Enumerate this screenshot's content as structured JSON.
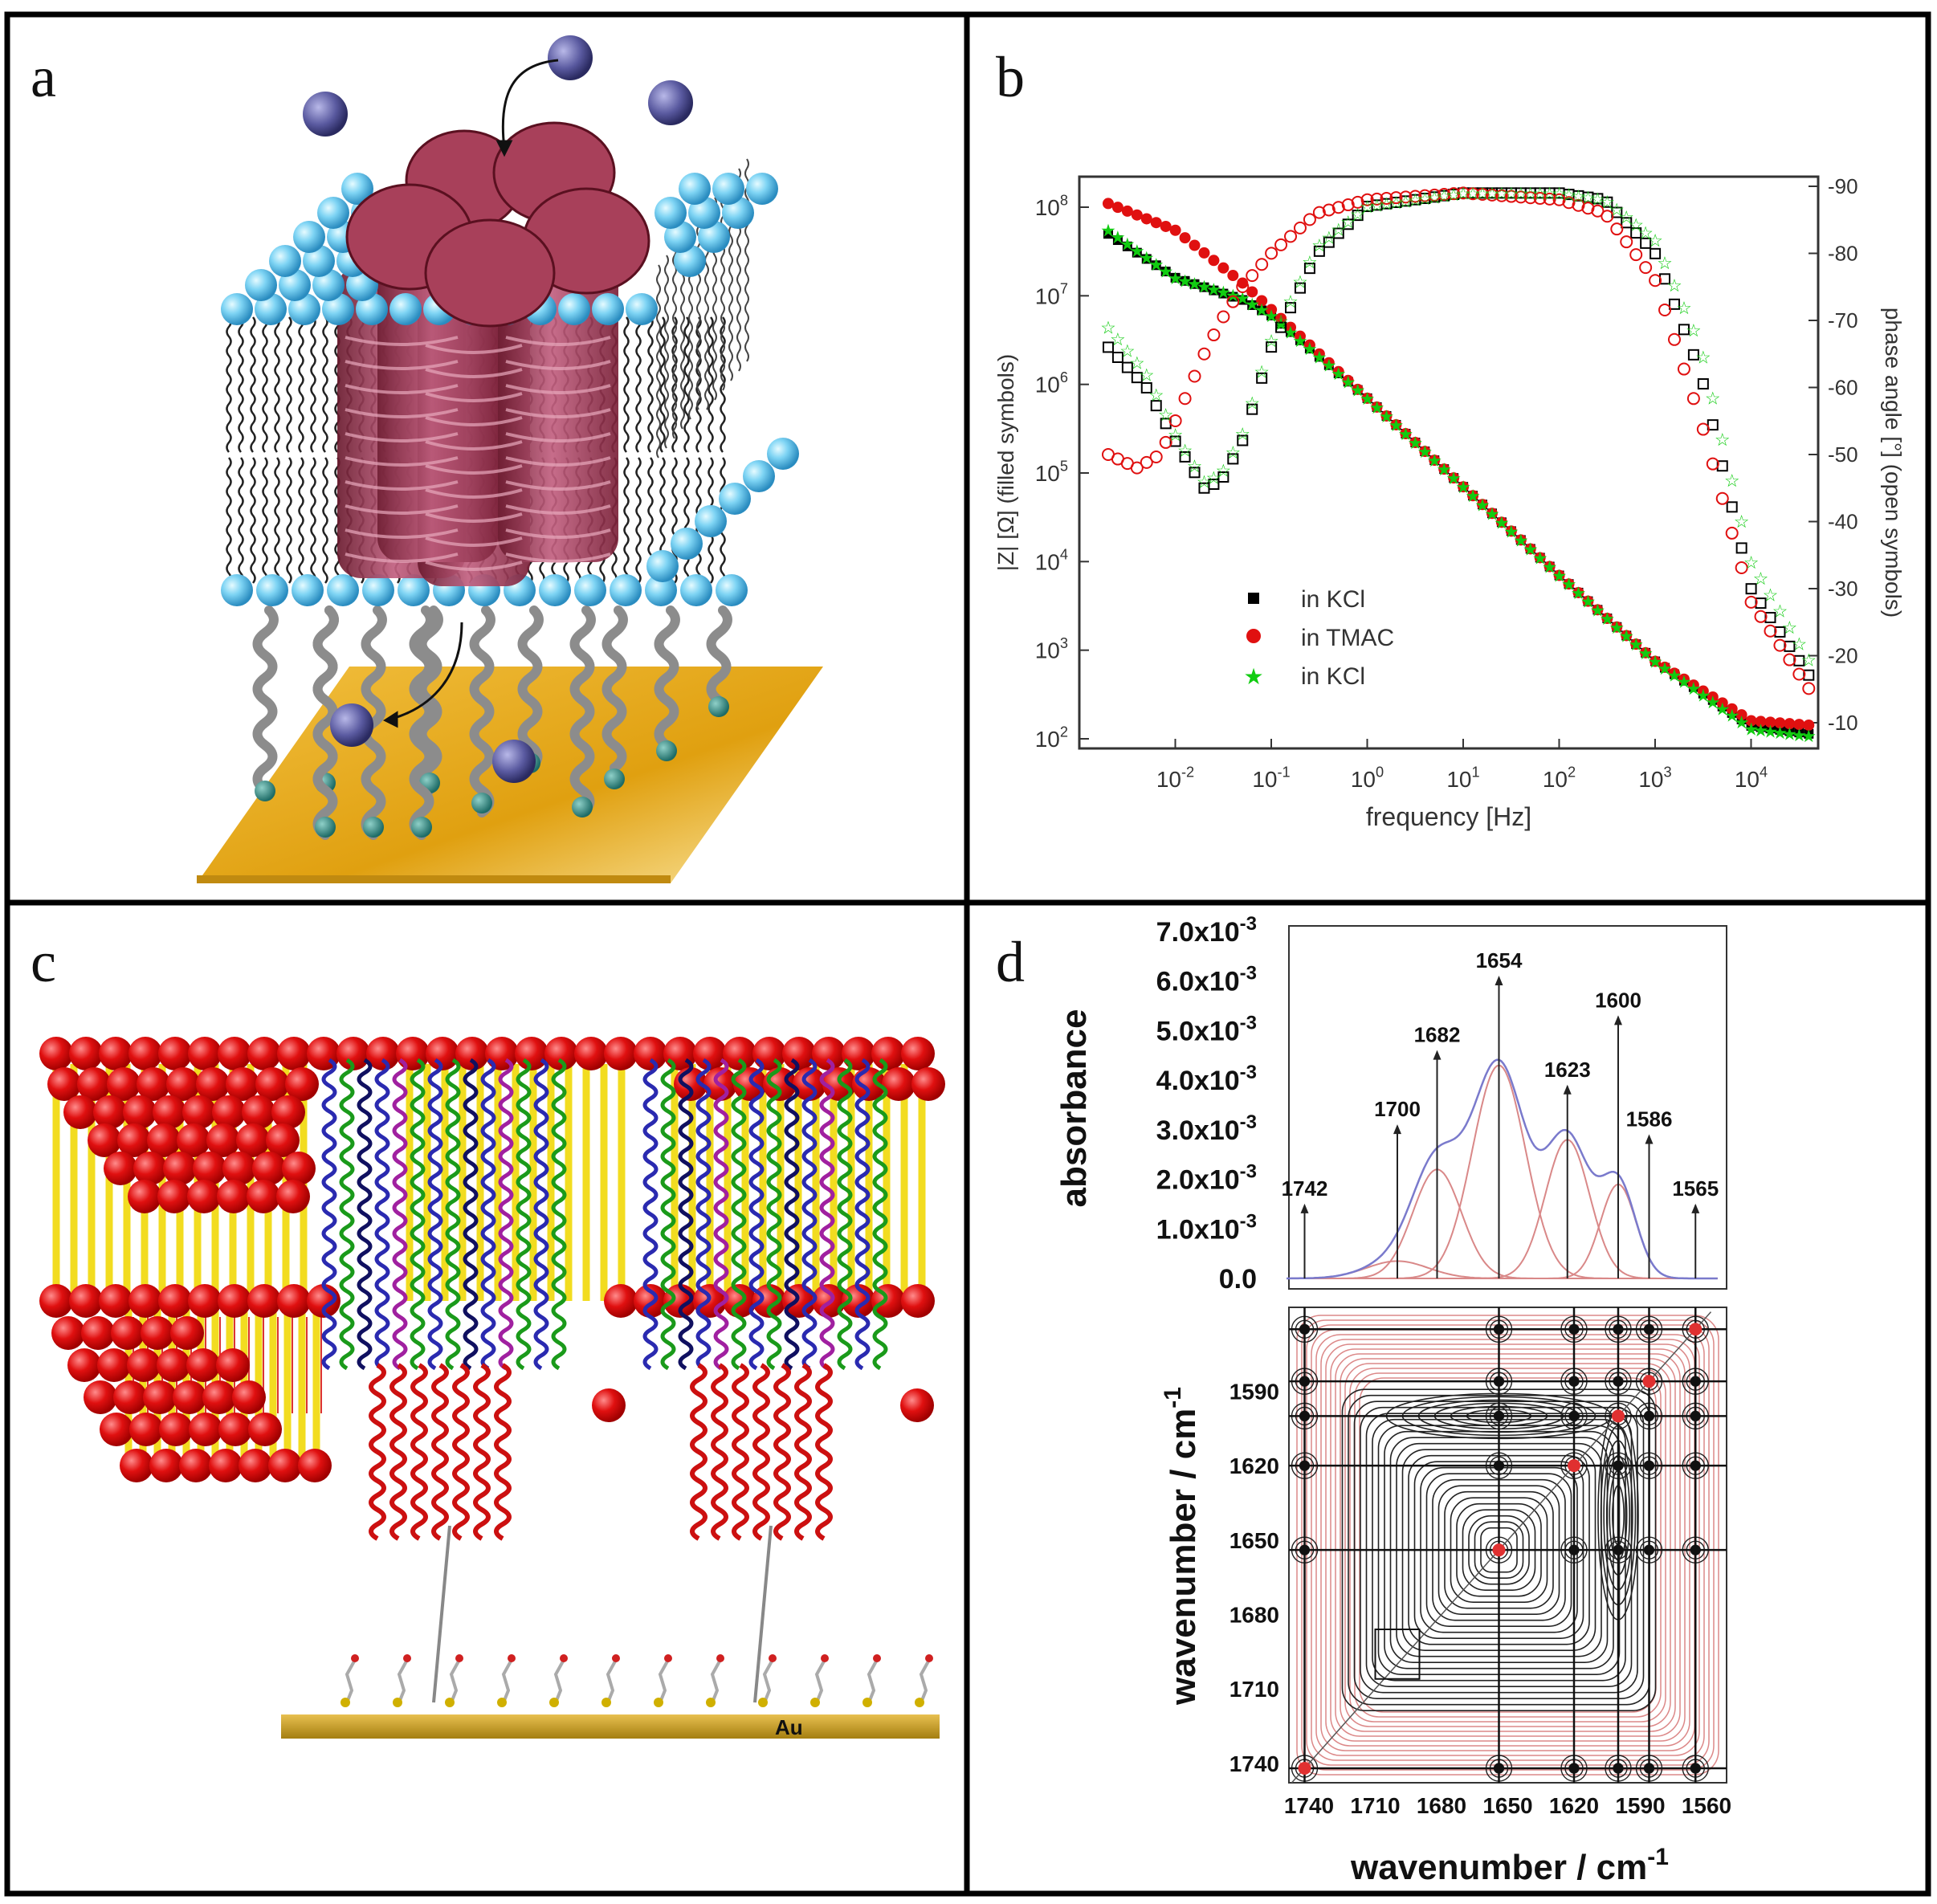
{
  "panels": {
    "a": {
      "label": "a"
    },
    "b": {
      "label": "b"
    },
    "c": {
      "label": "c",
      "substrate_label": "Au"
    },
    "d": {
      "label": "d"
    }
  },
  "chart_data": [
    {
      "panel": "b",
      "type": "scatter",
      "xlabel": "frequency [Hz]",
      "ylabel": "|Z| [Ω] (filled symbols)",
      "y2label": "phase angle [°] (open symbols)",
      "xscale": "log",
      "yscale": "log",
      "xlim": [
        0.001,
        50000
      ],
      "ylim": [
        100,
        100000000
      ],
      "y2lim": [
        -8,
        -92
      ],
      "x_ticks": [
        {
          "base": "10",
          "exp": "-2"
        },
        {
          "base": "10",
          "exp": "-1"
        },
        {
          "base": "10",
          "exp": "0"
        },
        {
          "base": "10",
          "exp": "1"
        },
        {
          "base": "10",
          "exp": "2"
        },
        {
          "base": "10",
          "exp": "3"
        },
        {
          "base": "10",
          "exp": "4"
        }
      ],
      "y_ticks": [
        {
          "base": "10",
          "exp": "2"
        },
        {
          "base": "10",
          "exp": "3"
        },
        {
          "base": "10",
          "exp": "4"
        },
        {
          "base": "10",
          "exp": "5"
        },
        {
          "base": "10",
          "exp": "6"
        },
        {
          "base": "10",
          "exp": "7"
        },
        {
          "base": "10",
          "exp": "8"
        }
      ],
      "y2_ticks": [
        "-10",
        "-20",
        "-30",
        "-40",
        "-50",
        "-60",
        "-70",
        "-80",
        "-90"
      ],
      "legend": [
        "in KCl",
        "in TMAC",
        "in KCl"
      ],
      "legend_position": "bottom-left",
      "series": [
        {
          "name": "in KCl",
          "kind": "impedance",
          "color": "#000000",
          "marker": "square",
          "x": [
            0.002,
            0.01,
            0.05,
            0.1,
            1,
            10,
            100,
            1000,
            10000,
            50000
          ],
          "y": [
            50000000,
            16000000,
            9000000,
            6000000,
            700000,
            70000,
            7000,
            750,
            140,
            110
          ]
        },
        {
          "name": "in TMAC",
          "kind": "impedance",
          "color": "#e01010",
          "marker": "circle",
          "x": [
            0.002,
            0.01,
            0.05,
            0.1,
            1,
            10,
            100,
            1000,
            10000,
            50000
          ],
          "y": [
            110000000,
            55000000,
            14000000,
            7000000,
            700000,
            70000,
            7000,
            750,
            160,
            140
          ]
        },
        {
          "name": "in KCl",
          "kind": "impedance",
          "color": "#11cc11",
          "marker": "star",
          "x": [
            0.002,
            0.01,
            0.05,
            0.1,
            1,
            10,
            100,
            1000,
            10000,
            50000
          ],
          "y": [
            55000000,
            16000000,
            9500000,
            6000000,
            700000,
            70000,
            7000,
            750,
            130,
            105
          ]
        },
        {
          "name": "in KCl",
          "kind": "phase",
          "color": "#000000",
          "marker": "open-square",
          "x": [
            0.002,
            0.005,
            0.01,
            0.02,
            0.03,
            0.05,
            0.1,
            0.3,
            1,
            10,
            100,
            300,
            1000,
            3000,
            10000,
            50000
          ],
          "y": [
            -66,
            -60,
            -52,
            -45,
            -46,
            -52,
            -66,
            -80,
            -87,
            -89,
            -89,
            -88,
            -80,
            -62,
            -30,
            -15
          ]
        },
        {
          "name": "in TMAC",
          "kind": "phase",
          "color": "#e01010",
          "marker": "open-circle",
          "x": [
            0.002,
            0.004,
            0.007,
            0.01,
            0.02,
            0.03,
            0.05,
            0.1,
            0.3,
            1,
            10,
            100,
            300,
            1000,
            3000,
            10000,
            50000
          ],
          "y": [
            -50,
            -48,
            -50,
            -55,
            -65,
            -70,
            -75,
            -80,
            -86,
            -88,
            -89,
            -88,
            -86,
            -76,
            -55,
            -28,
            -13
          ]
        },
        {
          "name": "in KCl",
          "kind": "phase",
          "color": "#11cc11",
          "marker": "open-star",
          "x": [
            0.002,
            0.005,
            0.01,
            0.02,
            0.03,
            0.05,
            0.1,
            0.3,
            1,
            10,
            100,
            300,
            1000,
            3000,
            10000,
            50000
          ],
          "y": [
            -69,
            -62,
            -53,
            -46,
            -47,
            -53,
            -67,
            -81,
            -87,
            -89,
            -89,
            -88,
            -82,
            -66,
            -34,
            -17
          ]
        }
      ]
    },
    {
      "panel": "d",
      "type": "line",
      "xlabel": "wavenumber / cm",
      "xlabel_sup": "-1",
      "ylabel": "absorbance",
      "y_ticks": [
        {
          "base": "0.0",
          "exp": ""
        },
        {
          "base": "1.0x10",
          "exp": "-3"
        },
        {
          "base": "2.0x10",
          "exp": "-3"
        },
        {
          "base": "3.0x10",
          "exp": "-3"
        },
        {
          "base": "4.0x10",
          "exp": "-3"
        },
        {
          "base": "5.0x10",
          "exp": "-3"
        },
        {
          "base": "6.0x10",
          "exp": "-3"
        },
        {
          "base": "7.0x10",
          "exp": "-3"
        }
      ],
      "x_ticks": [
        "1740",
        "1710",
        "1680",
        "1650",
        "1620",
        "1590",
        "1560"
      ],
      "xlim": [
        1752,
        1555
      ],
      "ylim": [
        0,
        0.0075
      ],
      "peaks": [
        {
          "label": "1742",
          "x": 1742,
          "label_y": 0.0018
        },
        {
          "label": "1700",
          "x": 1700,
          "label_y": 0.0034
        },
        {
          "label": "1682",
          "x": 1682,
          "label_y": 0.0049
        },
        {
          "label": "1654",
          "x": 1654,
          "label_y": 0.0064
        },
        {
          "label": "1623",
          "x": 1623,
          "label_y": 0.0042
        },
        {
          "label": "1600",
          "x": 1600,
          "label_y": 0.0056
        },
        {
          "label": "1586",
          "x": 1586,
          "label_y": 0.0032
        },
        {
          "label": "1565",
          "x": 1565,
          "label_y": 0.0018
        }
      ],
      "components": [
        {
          "center": 1700,
          "height": 0.00035,
          "width": 14
        },
        {
          "center": 1682,
          "height": 0.0022,
          "width": 11
        },
        {
          "center": 1654,
          "height": 0.0043,
          "width": 12
        },
        {
          "center": 1623,
          "height": 0.0028,
          "width": 10
        },
        {
          "center": 1600,
          "height": 0.0019,
          "width": 8
        }
      ],
      "envelope_color": "#7a7acc",
      "component_color": "#d98888"
    },
    {
      "panel": "d-2D",
      "type": "heatmap",
      "xlabel": "wavenumber / cm",
      "xlabel_sup": "-1",
      "ylabel": "wavenumber / cm",
      "ylabel_sup": "-1",
      "x_ticks": [
        "1740",
        "1710",
        "1680",
        "1650",
        "1620",
        "1590",
        "1560"
      ],
      "y_ticks": [
        "1590",
        "1620",
        "1650",
        "1680",
        "1710",
        "1740"
      ],
      "xlim": [
        1752,
        1555
      ],
      "ylim": [
        1560,
        1752
      ],
      "grid_positions": [
        1742,
        1654,
        1620,
        1600,
        1586,
        1565
      ],
      "contour_colors": {
        "positive": "#222222",
        "negative": "#d06060"
      }
    }
  ]
}
